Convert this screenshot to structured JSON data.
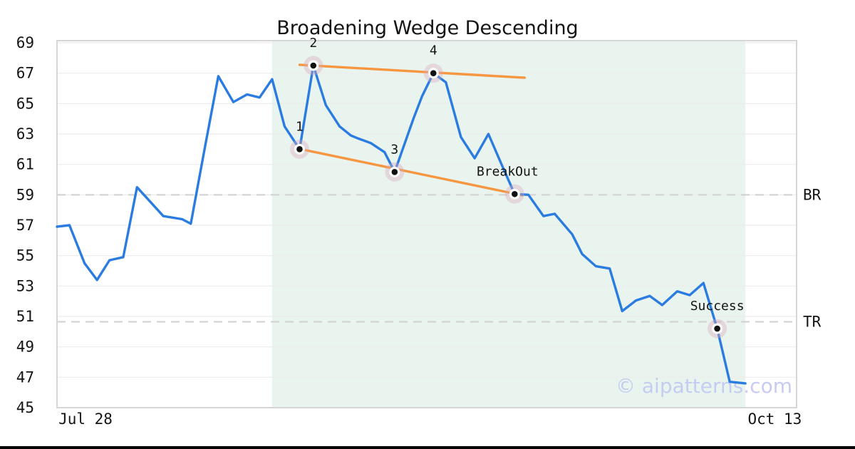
{
  "title": "Broadening Wedge Descending",
  "watermark": "© aipatterns.com",
  "colors": {
    "price_line": "#2b7ce1",
    "trend_line": "#f79640",
    "shade": "#e9f4ef",
    "grid": "#ececec",
    "dashed_level": "#d3d3d3",
    "spine": "#d6d6d6",
    "text": "#141414",
    "watermark": "#c5c9f2",
    "marker_halo": "rgba(219,168,187,0.38)",
    "marker_ring": "#ffffff",
    "marker_dot": "#111111",
    "bottom_bar": "#000000"
  },
  "chart_data": {
    "type": "line",
    "title": "Broadening Wedge Descending",
    "x_axis": {
      "ticks": [
        {
          "label": "Jul 28",
          "day": 2.28
        },
        {
          "label": "Oct 13",
          "day": 57.4
        }
      ],
      "day_range": [
        0,
        59.15
      ]
    },
    "y_axis": {
      "ticks": [
        45,
        47,
        49,
        51,
        53,
        55,
        57,
        59,
        61,
        63,
        65,
        67,
        69
      ],
      "range": [
        45,
        69.14
      ],
      "grid": true
    },
    "series": [
      {
        "name": "price",
        "points": [
          [
            0,
            56.9
          ],
          [
            1,
            57.0
          ],
          [
            2.2,
            54.5
          ],
          [
            3.2,
            53.4
          ],
          [
            4.2,
            54.7
          ],
          [
            5.3,
            54.9
          ],
          [
            6.4,
            59.5
          ],
          [
            8.5,
            57.6
          ],
          [
            10,
            57.4
          ],
          [
            10.7,
            57.1
          ],
          [
            11.8,
            62.0
          ],
          [
            12.9,
            66.8
          ],
          [
            14.1,
            65.1
          ],
          [
            15.2,
            65.6
          ],
          [
            16.2,
            65.4
          ],
          [
            17.2,
            66.6
          ],
          [
            18.2,
            63.5
          ],
          [
            19.4,
            62.0
          ],
          [
            20.5,
            67.5
          ],
          [
            21.5,
            64.9
          ],
          [
            22.6,
            63.5
          ],
          [
            23.5,
            62.9
          ],
          [
            24.1,
            62.7
          ],
          [
            25.1,
            62.4
          ],
          [
            26.2,
            61.8
          ],
          [
            27,
            60.5
          ],
          [
            28.5,
            64.0
          ],
          [
            29.2,
            65.5
          ],
          [
            30.1,
            67.0
          ],
          [
            31.1,
            66.4
          ],
          [
            32.3,
            62.8
          ],
          [
            33.4,
            61.4
          ],
          [
            34.5,
            63.0
          ],
          [
            35.5,
            61.1
          ],
          [
            36.6,
            59.05
          ],
          [
            37.7,
            59.0
          ],
          [
            38.9,
            57.6
          ],
          [
            39.8,
            57.75
          ],
          [
            41.2,
            56.4
          ],
          [
            42,
            55.1
          ],
          [
            43.1,
            54.3
          ],
          [
            44.2,
            54.15
          ],
          [
            45.2,
            51.35
          ],
          [
            46.3,
            52.05
          ],
          [
            47.4,
            52.35
          ],
          [
            48.4,
            51.75
          ],
          [
            49.6,
            52.65
          ],
          [
            50.6,
            52.4
          ],
          [
            51.7,
            53.2
          ],
          [
            52.8,
            50.2
          ],
          [
            53.8,
            46.7
          ],
          [
            55.05,
            46.6
          ]
        ]
      }
    ],
    "trendlines": [
      {
        "name": "upper-wedge-line",
        "from": [
          19.4,
          67.55
        ],
        "to": [
          37.4,
          66.7
        ]
      },
      {
        "name": "lower-wedge-line",
        "from": [
          19.4,
          62.02
        ],
        "to": [
          37.2,
          58.97
        ]
      }
    ],
    "levels": [
      {
        "label": "BR",
        "value": 59.0
      },
      {
        "label": "TR",
        "value": 50.65
      }
    ],
    "markers": [
      {
        "label": "1",
        "day": 19.4,
        "value": 62.0,
        "dx": 0
      },
      {
        "label": "2",
        "day": 20.5,
        "value": 67.5,
        "dx": 0
      },
      {
        "label": "3",
        "day": 27.0,
        "value": 60.5,
        "dx": 0
      },
      {
        "label": "4",
        "day": 30.1,
        "value": 67.0,
        "dx": 0
      },
      {
        "label": "BreakOut",
        "day": 36.6,
        "value": 59.05,
        "dx": -10
      },
      {
        "label": "Success",
        "day": 52.8,
        "value": 50.2,
        "dx": 0
      }
    ],
    "shade_region": {
      "from_day": 17.2,
      "to_day": 55.05
    },
    "legend": null
  }
}
